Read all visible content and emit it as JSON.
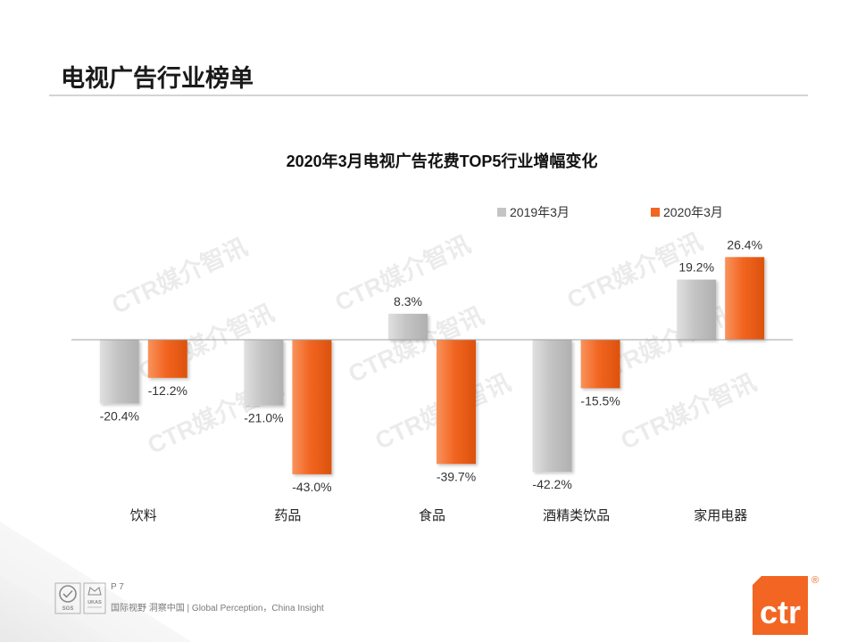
{
  "slide": {
    "title": "电视广告行业榜单",
    "page": "P 7",
    "slogan": "国际视野 洞察中国 | Global Perception，China Insight"
  },
  "watermark": "CTR媒介智讯",
  "logos": {
    "sgs": "SGS",
    "ukas": "UKAS",
    "brand": "ctr",
    "registered": "®"
  },
  "colors": {
    "brand": "#f26522",
    "title_text": "#1a1a1a",
    "baseline": "#a0a0a0"
  },
  "chart_data": {
    "type": "bar",
    "title": "2020年3月电视广告花费TOP5行业增幅变化",
    "xlabel": "",
    "ylabel": "",
    "legend": "top-right",
    "grid": false,
    "categories": [
      "饮料",
      "药品",
      "食品",
      "酒精类饮品",
      "家用电器"
    ],
    "series": [
      {
        "name": "2019年3月",
        "color": "#c4c4c4",
        "values": [
          -20.4,
          -21.0,
          8.3,
          -42.2,
          19.2
        ],
        "labels": [
          "-20.4%",
          "-21.0%",
          "8.3%",
          "-42.2%",
          "19.2%"
        ]
      },
      {
        "name": "2020年3月",
        "color": "#f26522",
        "values": [
          -12.2,
          -43.0,
          -39.7,
          -15.5,
          26.4
        ],
        "labels": [
          "-12.2%",
          "-43.0%",
          "-39.7%",
          "-15.5%",
          "26.4%"
        ]
      }
    ]
  }
}
